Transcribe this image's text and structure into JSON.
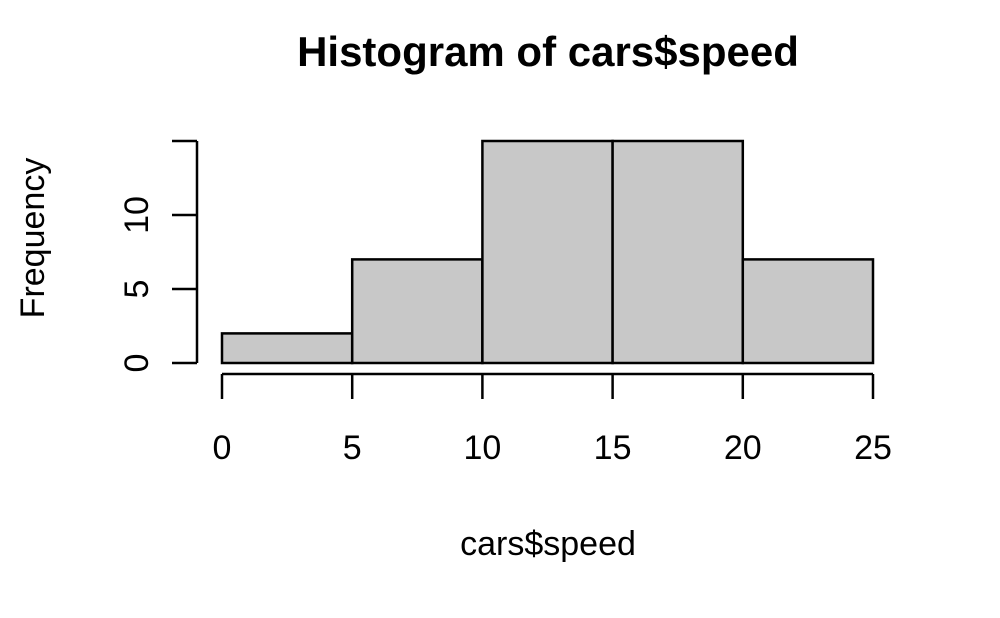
{
  "chart_data": {
    "type": "bar",
    "title": "Histogram of cars$speed",
    "xlabel": "cars$speed",
    "ylabel": "Frequency",
    "bins": [
      {
        "from": 0,
        "to": 5,
        "count": 2
      },
      {
        "from": 5,
        "to": 10,
        "count": 7
      },
      {
        "from": 10,
        "to": 15,
        "count": 15
      },
      {
        "from": 15,
        "to": 20,
        "count": 15
      },
      {
        "from": 20,
        "to": 25,
        "count": 7
      }
    ],
    "xlim": [
      0,
      25
    ],
    "ylim": [
      0,
      15
    ],
    "x_ticks": [
      "0",
      "5",
      "10",
      "15",
      "20",
      "25"
    ],
    "y_ticks": [
      "0",
      "5",
      "10"
    ],
    "bar_color": "#c8c8c8",
    "grid": false
  }
}
